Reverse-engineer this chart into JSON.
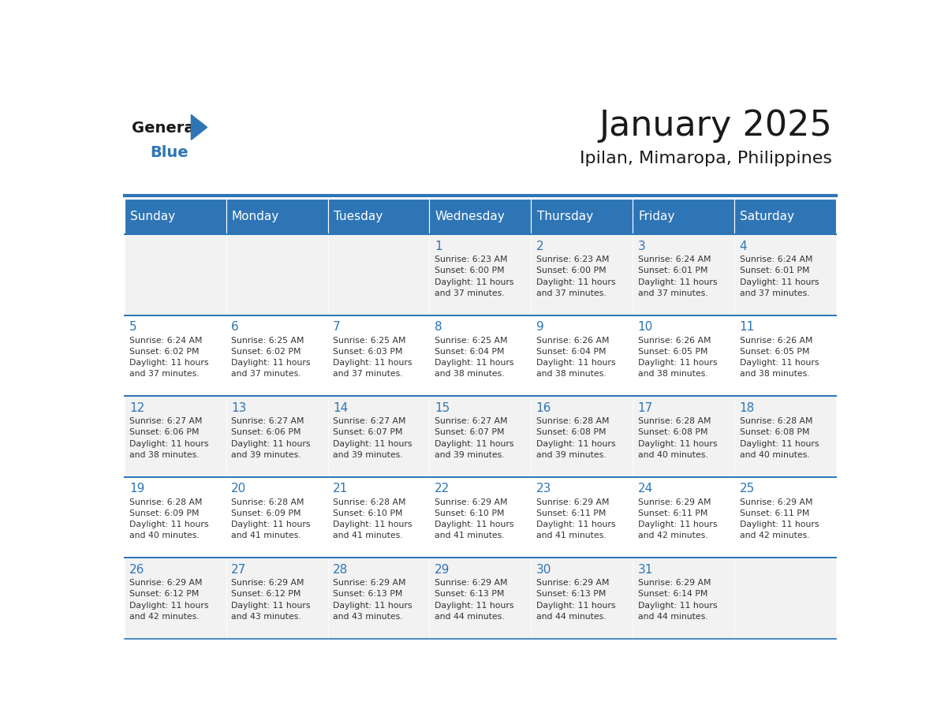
{
  "title": "January 2025",
  "subtitle": "Ipilan, Mimaropa, Philippines",
  "days_of_week": [
    "Sunday",
    "Monday",
    "Tuesday",
    "Wednesday",
    "Thursday",
    "Friday",
    "Saturday"
  ],
  "header_bg_color": "#2E75B6",
  "header_text_color": "#FFFFFF",
  "cell_bg_even": "#F2F2F2",
  "cell_bg_odd": "#FFFFFF",
  "day_num_color": "#2E75B6",
  "text_color": "#333333",
  "grid_color": "#2E75B6",
  "title_color": "#1a1a1a",
  "logo_general_color": "#1a1a1a",
  "logo_blue_color": "#2E75B6",
  "weeks": [
    [
      {
        "day": null,
        "sunrise": null,
        "sunset": null,
        "daylight": null
      },
      {
        "day": null,
        "sunrise": null,
        "sunset": null,
        "daylight": null
      },
      {
        "day": null,
        "sunrise": null,
        "sunset": null,
        "daylight": null
      },
      {
        "day": 1,
        "sunrise": "6:23 AM",
        "sunset": "6:00 PM",
        "daylight": "11 hours and 37 minutes."
      },
      {
        "day": 2,
        "sunrise": "6:23 AM",
        "sunset": "6:00 PM",
        "daylight": "11 hours and 37 minutes."
      },
      {
        "day": 3,
        "sunrise": "6:24 AM",
        "sunset": "6:01 PM",
        "daylight": "11 hours and 37 minutes."
      },
      {
        "day": 4,
        "sunrise": "6:24 AM",
        "sunset": "6:01 PM",
        "daylight": "11 hours and 37 minutes."
      }
    ],
    [
      {
        "day": 5,
        "sunrise": "6:24 AM",
        "sunset": "6:02 PM",
        "daylight": "11 hours and 37 minutes."
      },
      {
        "day": 6,
        "sunrise": "6:25 AM",
        "sunset": "6:02 PM",
        "daylight": "11 hours and 37 minutes."
      },
      {
        "day": 7,
        "sunrise": "6:25 AM",
        "sunset": "6:03 PM",
        "daylight": "11 hours and 37 minutes."
      },
      {
        "day": 8,
        "sunrise": "6:25 AM",
        "sunset": "6:04 PM",
        "daylight": "11 hours and 38 minutes."
      },
      {
        "day": 9,
        "sunrise": "6:26 AM",
        "sunset": "6:04 PM",
        "daylight": "11 hours and 38 minutes."
      },
      {
        "day": 10,
        "sunrise": "6:26 AM",
        "sunset": "6:05 PM",
        "daylight": "11 hours and 38 minutes."
      },
      {
        "day": 11,
        "sunrise": "6:26 AM",
        "sunset": "6:05 PM",
        "daylight": "11 hours and 38 minutes."
      }
    ],
    [
      {
        "day": 12,
        "sunrise": "6:27 AM",
        "sunset": "6:06 PM",
        "daylight": "11 hours and 38 minutes."
      },
      {
        "day": 13,
        "sunrise": "6:27 AM",
        "sunset": "6:06 PM",
        "daylight": "11 hours and 39 minutes."
      },
      {
        "day": 14,
        "sunrise": "6:27 AM",
        "sunset": "6:07 PM",
        "daylight": "11 hours and 39 minutes."
      },
      {
        "day": 15,
        "sunrise": "6:27 AM",
        "sunset": "6:07 PM",
        "daylight": "11 hours and 39 minutes."
      },
      {
        "day": 16,
        "sunrise": "6:28 AM",
        "sunset": "6:08 PM",
        "daylight": "11 hours and 39 minutes."
      },
      {
        "day": 17,
        "sunrise": "6:28 AM",
        "sunset": "6:08 PM",
        "daylight": "11 hours and 40 minutes."
      },
      {
        "day": 18,
        "sunrise": "6:28 AM",
        "sunset": "6:08 PM",
        "daylight": "11 hours and 40 minutes."
      }
    ],
    [
      {
        "day": 19,
        "sunrise": "6:28 AM",
        "sunset": "6:09 PM",
        "daylight": "11 hours and 40 minutes."
      },
      {
        "day": 20,
        "sunrise": "6:28 AM",
        "sunset": "6:09 PM",
        "daylight": "11 hours and 41 minutes."
      },
      {
        "day": 21,
        "sunrise": "6:28 AM",
        "sunset": "6:10 PM",
        "daylight": "11 hours and 41 minutes."
      },
      {
        "day": 22,
        "sunrise": "6:29 AM",
        "sunset": "6:10 PM",
        "daylight": "11 hours and 41 minutes."
      },
      {
        "day": 23,
        "sunrise": "6:29 AM",
        "sunset": "6:11 PM",
        "daylight": "11 hours and 41 minutes."
      },
      {
        "day": 24,
        "sunrise": "6:29 AM",
        "sunset": "6:11 PM",
        "daylight": "11 hours and 42 minutes."
      },
      {
        "day": 25,
        "sunrise": "6:29 AM",
        "sunset": "6:11 PM",
        "daylight": "11 hours and 42 minutes."
      }
    ],
    [
      {
        "day": 26,
        "sunrise": "6:29 AM",
        "sunset": "6:12 PM",
        "daylight": "11 hours and 42 minutes."
      },
      {
        "day": 27,
        "sunrise": "6:29 AM",
        "sunset": "6:12 PM",
        "daylight": "11 hours and 43 minutes."
      },
      {
        "day": 28,
        "sunrise": "6:29 AM",
        "sunset": "6:13 PM",
        "daylight": "11 hours and 43 minutes."
      },
      {
        "day": 29,
        "sunrise": "6:29 AM",
        "sunset": "6:13 PM",
        "daylight": "11 hours and 44 minutes."
      },
      {
        "day": 30,
        "sunrise": "6:29 AM",
        "sunset": "6:13 PM",
        "daylight": "11 hours and 44 minutes."
      },
      {
        "day": 31,
        "sunrise": "6:29 AM",
        "sunset": "6:14 PM",
        "daylight": "11 hours and 44 minutes."
      },
      {
        "day": null,
        "sunrise": null,
        "sunset": null,
        "daylight": null
      }
    ]
  ]
}
